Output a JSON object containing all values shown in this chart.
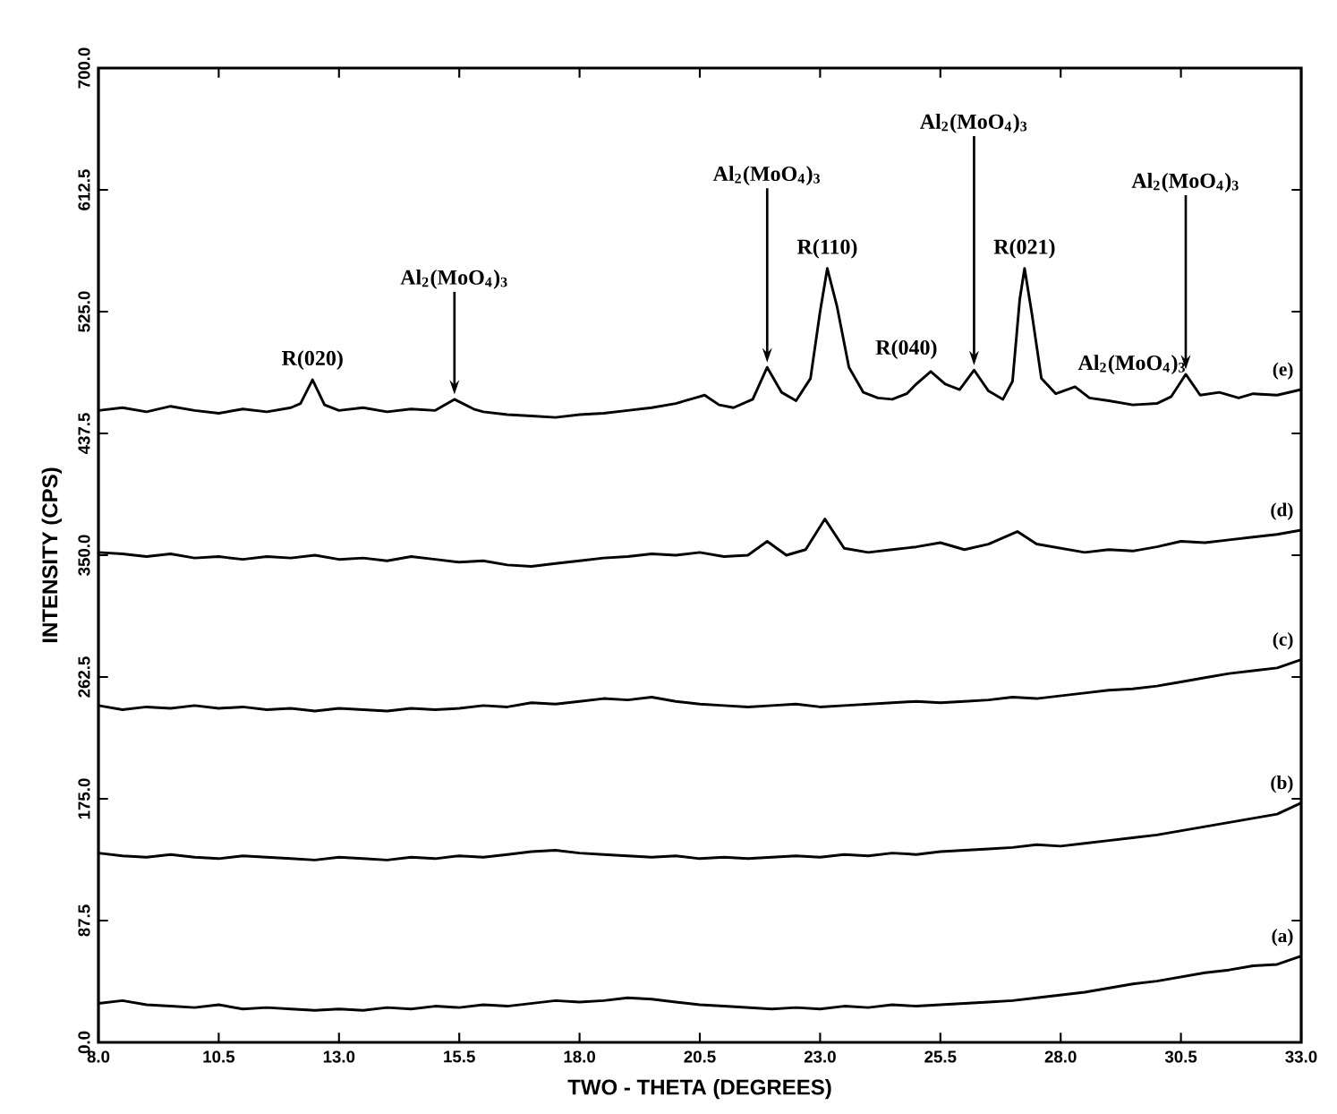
{
  "chart_data": {
    "type": "line",
    "xlabel": "TWO - THETA   (DEGREES)",
    "ylabel": "INTENSITY (CPS)",
    "xlim": [
      8,
      33
    ],
    "ylim": [
      0,
      700
    ],
    "xticks": [
      {
        "value": 8,
        "label": "8.0"
      },
      {
        "value": 10.5,
        "label": "10.5"
      },
      {
        "value": 13,
        "label": "13.0"
      },
      {
        "value": 15.5,
        "label": "15.5"
      },
      {
        "value": 18,
        "label": "18.0"
      },
      {
        "value": 20.5,
        "label": "20.5"
      },
      {
        "value": 23,
        "label": "23.0"
      },
      {
        "value": 25.5,
        "label": "25.5"
      },
      {
        "value": 28,
        "label": "28.0"
      },
      {
        "value": 30.5,
        "label": "30.5"
      },
      {
        "value": 33,
        "label": "33.0"
      }
    ],
    "yticks": [
      {
        "value": 0,
        "label": "0.0"
      },
      87.5,
      {
        "value": 175,
        "label": "175.0"
      },
      262.5,
      {
        "value": 350,
        "label": "350.0"
      },
      437.5,
      {
        "value": 525,
        "label": "525.0"
      },
      612.5,
      {
        "value": 700,
        "label": "700.0"
      }
    ],
    "marker": "none",
    "line_style": "solid",
    "series": [
      {
        "name": "(e)",
        "color": "#000000",
        "x": [
          8.0,
          8.5,
          9.0,
          9.5,
          10.0,
          10.5,
          11.0,
          11.5,
          12.0,
          12.2,
          12.45,
          12.7,
          13.0,
          13.5,
          14.0,
          14.5,
          15.0,
          15.4,
          15.8,
          16.0,
          16.5,
          17.0,
          17.5,
          18.0,
          18.5,
          19.0,
          19.5,
          20.0,
          20.4,
          20.6,
          20.9,
          21.2,
          21.6,
          21.9,
          22.2,
          22.5,
          22.8,
          23.0,
          23.15,
          23.35,
          23.6,
          23.9,
          24.2,
          24.5,
          24.8,
          25.0,
          25.3,
          25.6,
          25.9,
          26.2,
          26.5,
          26.8,
          27.0,
          27.15,
          27.25,
          27.4,
          27.6,
          27.9,
          28.3,
          28.6,
          29.0,
          29.5,
          30.0,
          30.3,
          30.6,
          30.9,
          31.3,
          31.7,
          32.0,
          32.5,
          33.0
        ],
        "values": [
          454,
          456,
          453,
          457,
          454,
          452,
          455,
          453,
          456,
          459,
          476,
          458,
          454,
          456,
          453,
          455,
          454,
          462,
          455,
          453,
          451,
          450,
          449,
          451,
          452,
          454,
          456,
          459,
          463,
          465,
          458,
          456,
          462,
          485,
          467,
          461,
          477,
          525,
          556,
          529,
          485,
          467,
          463,
          462,
          466,
          473,
          482,
          473,
          469,
          483,
          468,
          462,
          475,
          534,
          556,
          524,
          477,
          466,
          471,
          463,
          461,
          458,
          459,
          464,
          480,
          465,
          467,
          463,
          466,
          465,
          469
        ]
      },
      {
        "name": "(d)",
        "color": "#000000",
        "x": [
          8.0,
          8.5,
          9.0,
          9.5,
          10.0,
          10.5,
          11.0,
          11.5,
          12.0,
          12.5,
          13.0,
          13.5,
          14.0,
          14.5,
          15.0,
          15.5,
          16.0,
          16.5,
          17.0,
          17.5,
          18.0,
          18.5,
          19.0,
          19.5,
          20.0,
          20.5,
          21.0,
          21.5,
          21.9,
          22.3,
          22.7,
          23.1,
          23.5,
          24.0,
          24.5,
          25.0,
          25.5,
          26.0,
          26.5,
          27.1,
          27.5,
          28.0,
          28.5,
          29.0,
          29.5,
          30.0,
          30.5,
          31.0,
          31.5,
          32.0,
          32.5,
          33.0
        ],
        "values": [
          352,
          351,
          349,
          351,
          348,
          349,
          347,
          349,
          348,
          350,
          347,
          348,
          346,
          349,
          347,
          345,
          346,
          343,
          342,
          344,
          346,
          348,
          349,
          351,
          350,
          352,
          349,
          350,
          360,
          350,
          354,
          376,
          355,
          352,
          354,
          356,
          359,
          354,
          358,
          367,
          358,
          355,
          352,
          354,
          353,
          356,
          360,
          359,
          361,
          363,
          365,
          368
        ]
      },
      {
        "name": "(c)",
        "color": "#000000",
        "x": [
          8.0,
          8.5,
          9.0,
          9.5,
          10.0,
          10.5,
          11.0,
          11.5,
          12.0,
          12.5,
          13.0,
          13.5,
          14.0,
          14.5,
          15.0,
          15.5,
          16.0,
          16.5,
          17.0,
          17.5,
          18.0,
          18.5,
          19.0,
          19.5,
          20.0,
          20.5,
          21.0,
          21.5,
          22.0,
          22.5,
          23.0,
          23.5,
          24.0,
          24.5,
          25.0,
          25.5,
          26.0,
          26.5,
          27.0,
          27.5,
          28.0,
          28.5,
          29.0,
          29.5,
          30.0,
          30.5,
          31.0,
          31.5,
          32.0,
          32.5,
          33.0
        ],
        "values": [
          242,
          239,
          241,
          240,
          242,
          240,
          241,
          239,
          240,
          238,
          240,
          239,
          238,
          240,
          239,
          240,
          242,
          241,
          244,
          243,
          245,
          247,
          246,
          248,
          245,
          243,
          242,
          241,
          242,
          243,
          241,
          242,
          243,
          244,
          245,
          244,
          245,
          246,
          248,
          247,
          249,
          251,
          253,
          254,
          256,
          259,
          262,
          265,
          267,
          269,
          275
        ]
      },
      {
        "name": "(b)",
        "color": "#000000",
        "x": [
          8.0,
          8.5,
          9.0,
          9.5,
          10.0,
          10.5,
          11.0,
          11.5,
          12.0,
          12.5,
          13.0,
          13.5,
          14.0,
          14.5,
          15.0,
          15.5,
          16.0,
          16.5,
          17.0,
          17.5,
          18.0,
          18.5,
          19.0,
          19.5,
          20.0,
          20.5,
          21.0,
          21.5,
          22.0,
          22.5,
          23.0,
          23.5,
          24.0,
          24.5,
          25.0,
          25.5,
          26.0,
          26.5,
          27.0,
          27.5,
          28.0,
          28.5,
          29.0,
          29.5,
          30.0,
          30.5,
          31.0,
          31.5,
          32.0,
          32.5,
          33.0
        ],
        "values": [
          136,
          134,
          133,
          135,
          133,
          132,
          134,
          133,
          132,
          131,
          133,
          132,
          131,
          133,
          132,
          134,
          133,
          135,
          137,
          138,
          136,
          135,
          134,
          133,
          134,
          132,
          133,
          132,
          133,
          134,
          133,
          135,
          134,
          136,
          135,
          137,
          138,
          139,
          140,
          142,
          141,
          143,
          145,
          147,
          149,
          152,
          155,
          158,
          161,
          164,
          172
        ]
      },
      {
        "name": "(a)",
        "color": "#000000",
        "x": [
          8.0,
          8.5,
          9.0,
          9.5,
          10.0,
          10.5,
          11.0,
          11.5,
          12.0,
          12.5,
          13.0,
          13.5,
          14.0,
          14.5,
          15.0,
          15.5,
          16.0,
          16.5,
          17.0,
          17.5,
          18.0,
          18.5,
          19.0,
          19.5,
          20.0,
          20.5,
          21.0,
          21.5,
          22.0,
          22.5,
          23.0,
          23.5,
          24.0,
          24.5,
          25.0,
          25.5,
          26.0,
          26.5,
          27.0,
          27.5,
          28.0,
          28.5,
          29.0,
          29.5,
          30.0,
          30.5,
          31.0,
          31.5,
          32.0,
          32.5,
          33.0
        ],
        "values": [
          28,
          30,
          27,
          26,
          25,
          27,
          24,
          25,
          24,
          23,
          24,
          23,
          25,
          24,
          26,
          25,
          27,
          26,
          28,
          30,
          29,
          30,
          32,
          31,
          29,
          27,
          26,
          25,
          24,
          25,
          24,
          26,
          25,
          27,
          26,
          27,
          28,
          29,
          30,
          32,
          34,
          36,
          39,
          42,
          44,
          47,
          50,
          52,
          55,
          56,
          62
        ]
      }
    ],
    "annotations": [
      {
        "text": "R(020)",
        "x": 12.45,
        "y": 476
      },
      {
        "text": "Al$_{2}$(MoO$_{4}$)$_{3}$",
        "x": 15.4,
        "y": 462
      },
      {
        "text": "Al$_{2}$(MoO$_{4}$)$_{3}$",
        "x": 21.9,
        "y": 485
      },
      {
        "text": "R(110)",
        "x": 23.15,
        "y": 556
      },
      {
        "text": "R(040)",
        "x": 25.3,
        "y": 482
      },
      {
        "text": "Al$_{2}$(MoO$_{4}$)$_{3}$",
        "x": 26.2,
        "y": 483
      },
      {
        "text": "R(021)",
        "x": 27.25,
        "y": 556
      },
      {
        "text": "Al$_{2}$(MoO$_{4}$)$_{3}$",
        "x": 28.3,
        "y": 471
      },
      {
        "text": "Al$_{2}$(MoO$_{4}$)$_{3}$",
        "x": 30.6,
        "y": 480
      }
    ]
  }
}
